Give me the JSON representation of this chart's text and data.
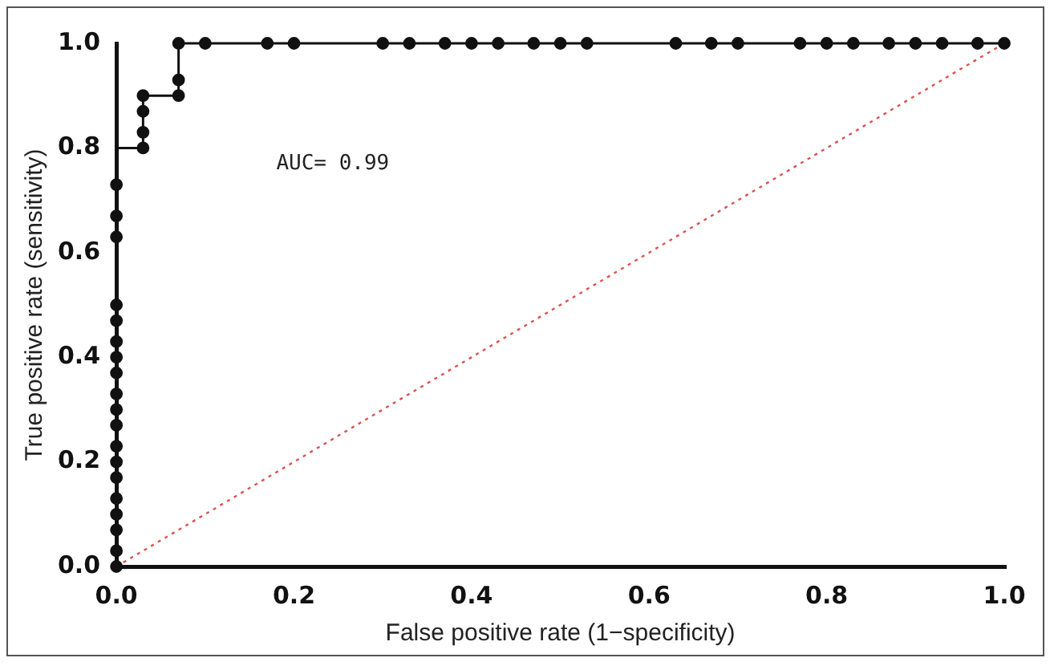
{
  "chart_data": {
    "type": "step",
    "xlabel": "False positive rate (1−specificity)",
    "ylabel": "True positive rate (sensitivity)",
    "annotations": [
      "AUC= 0.99"
    ],
    "xlim": [
      0,
      1
    ],
    "ylim": [
      0,
      1
    ],
    "xticks": [
      {
        "value": 0,
        "label": "0.0"
      },
      {
        "value": 0.2,
        "label": "0.2"
      },
      {
        "value": 0.4,
        "label": "0.4"
      },
      {
        "value": 0.6,
        "label": "0.6"
      },
      {
        "value": 0.8,
        "label": "0.8"
      },
      {
        "value": 1,
        "label": "1.0"
      }
    ],
    "yticks": [
      {
        "value": 0,
        "label": "0.0"
      },
      {
        "value": 0.2,
        "label": "0.2"
      },
      {
        "value": 0.4,
        "label": "0.4"
      },
      {
        "value": 0.6,
        "label": "0.6"
      },
      {
        "value": 0.8,
        "label": "0.8"
      },
      {
        "value": 1,
        "label": "1.0"
      }
    ],
    "grid": false,
    "legend": false,
    "series": [
      {
        "color": "#111111",
        "marker": "circle",
        "line_style": "solid",
        "x": [
          0,
          0,
          0,
          0,
          0,
          0,
          0,
          0,
          0,
          0,
          0,
          0,
          0,
          0,
          0,
          0,
          0,
          0,
          0,
          0.03,
          0.03,
          0.03,
          0.03,
          0.07,
          0.07,
          0.07,
          0.1,
          0.17,
          0.2,
          0.3,
          0.33,
          0.37,
          0.4,
          0.43,
          0.47,
          0.5,
          0.53,
          0.63,
          0.67,
          0.7,
          0.77,
          0.8,
          0.83,
          0.87,
          0.9,
          0.93,
          0.97,
          1
        ],
        "values": [
          0,
          0.03,
          0.07,
          0.1,
          0.13,
          0.17,
          0.2,
          0.23,
          0.27,
          0.3,
          0.33,
          0.37,
          0.4,
          0.43,
          0.47,
          0.5,
          0.63,
          0.67,
          0.73,
          0.8,
          0.83,
          0.87,
          0.9,
          0.9,
          0.93,
          1,
          1,
          1,
          1,
          1,
          1,
          1,
          1,
          1,
          1,
          1,
          1,
          1,
          1,
          1,
          1,
          1,
          1,
          1,
          1,
          1,
          1,
          1
        ]
      },
      {
        "type": "line",
        "color": "#d9534f",
        "marker": "none",
        "line_style": "dotted",
        "x": [
          0,
          1
        ],
        "values": [
          0,
          1
        ]
      }
    ]
  }
}
